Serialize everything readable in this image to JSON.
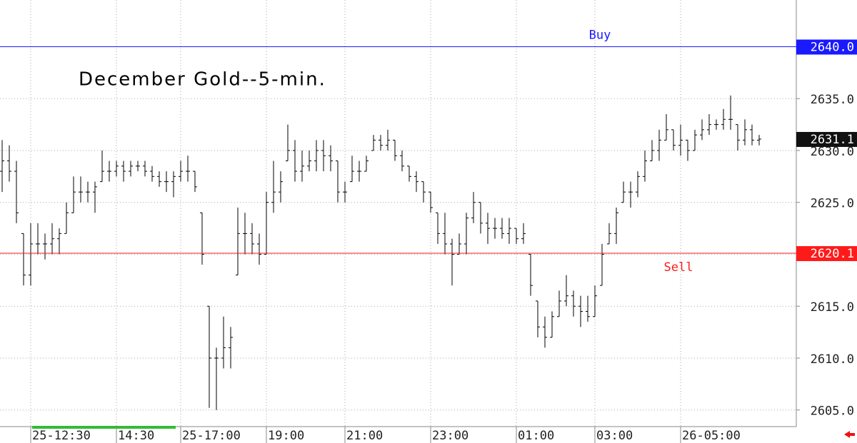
{
  "chart_data": {
    "type": "ohlc",
    "title": "December Gold--5-min.",
    "color": "#000000",
    "categories": [
      null,
      null,
      null,
      null,
      "25-12:30",
      null,
      null,
      null,
      null,
      null,
      null,
      null,
      null,
      null,
      null,
      null,
      "14:30",
      null,
      null,
      null,
      null,
      null,
      null,
      null,
      null,
      "25-17:00",
      null,
      null,
      null,
      null,
      null,
      null,
      null,
      null,
      null,
      null,
      null,
      "19:00",
      null,
      null,
      null,
      null,
      null,
      null,
      null,
      null,
      null,
      null,
      "21:00",
      null,
      null,
      null,
      null,
      null,
      null,
      null,
      null,
      null,
      null,
      null,
      "23:00",
      null,
      null,
      null,
      null,
      null,
      null,
      null,
      null,
      null,
      null,
      null,
      "01:00",
      null,
      null,
      null,
      null,
      null,
      null,
      null,
      null,
      null,
      null,
      "03:00",
      null,
      null,
      null,
      null,
      null,
      null,
      null,
      null,
      null,
      null,
      null,
      "26-05:00",
      null,
      null,
      null,
      null,
      null,
      null,
      null,
      null,
      null,
      null,
      null
    ],
    "open": [
      2628,
      2629,
      2628,
      2622,
      2618,
      2621,
      2621,
      2621,
      2621.5,
      2622,
      2624,
      2626,
      2626,
      2626,
      2627,
      2628,
      2628,
      2628.5,
      2628,
      2628.5,
      2628.5,
      2628,
      2627.5,
      2627,
      2627,
      2627.5,
      2628,
      2628,
      2624,
      2615,
      2610,
      2610,
      2611,
      2618,
      2622,
      2622,
      2621,
      2620,
      2625,
      2626,
      2629,
      2630,
      2628,
      2628.5,
      2629,
      2630,
      2629.5,
      2629,
      2626,
      2627,
      2628,
      2628,
      2630,
      2631,
      2630.5,
      2631,
      2629.5,
      2628.5,
      2627.5,
      2627,
      2626,
      2624,
      2622,
      2621,
      2620,
      2621,
      2623.5,
      2625,
      2623,
      2622.5,
      2622.5,
      2622,
      2622.5,
      2621.5,
      2620,
      2615.5,
      2613,
      2612,
      2614,
      2615.5,
      2616,
      2615,
      2614.5,
      2614,
      2617,
      2621,
      2622,
      2625,
      2626,
      2626,
      2627.5,
      2629,
      2630,
      2631,
      2632,
      2630.5,
      2631,
      2630,
      2631.5,
      2632,
      2632.5,
      2632.5,
      2633,
      2632.5,
      2631,
      2632,
      2631
    ],
    "high": [
      2631,
      2630.5,
      2629,
      2622,
      2623,
      2623,
      2622,
      2623,
      2622.5,
      2625,
      2627.5,
      2627.5,
      2627,
      2627,
      2630,
      2629,
      2629,
      2629,
      2629,
      2629,
      2629,
      2628.5,
      2628,
      2628,
      2628,
      2629,
      2629.5,
      2628,
      2624,
      2615,
      2611,
      2614,
      2613,
      2624.5,
      2624,
      2623,
      2622,
      2626,
      2629,
      2628,
      2632.5,
      2631,
      2630,
      2630,
      2631,
      2631,
      2630.5,
      2629,
      2627,
      2629.5,
      2629,
      2629.5,
      2631.5,
      2631.5,
      2632,
      2631,
      2630,
      2628.5,
      2628,
      2627,
      2626,
      2624,
      2624,
      2621.5,
      2622,
      2624,
      2626,
      2625,
      2624,
      2623.5,
      2623.5,
      2623.5,
      2622.5,
      2623,
      2620,
      2615.5,
      2614,
      2614.5,
      2616.5,
      2618,
      2616.5,
      2616,
      2616,
      2617,
      2621,
      2623,
      2624.5,
      2627,
      2627,
      2628,
      2630,
      2631,
      2632,
      2633.5,
      2632,
      2632.5,
      2631,
      2632,
      2633,
      2633.5,
      2633,
      2634,
      2635.3,
      2632.5,
      2633,
      2632.5,
      2631.5
    ],
    "low": [
      2626,
      2627,
      2623,
      2617,
      2617,
      2620,
      2619.5,
      2620,
      2620,
      2622,
      2624,
      2625,
      2625,
      2624,
      2627,
      2627,
      2627.5,
      2627,
      2627.5,
      2628,
      2627.5,
      2627,
      2626.5,
      2626,
      2625.5,
      2627,
      2627,
      2626,
      2619,
      2605.2,
      2605,
      2609,
      2609,
      2618,
      2620,
      2620,
      2619,
      2620,
      2624,
      2625,
      2629,
      2627,
      2627,
      2628,
      2628,
      2628,
      2628,
      2625,
      2625,
      2627,
      2627,
      2628,
      2630,
      2630,
      2630,
      2629,
      2628,
      2627,
      2626,
      2625,
      2624,
      2621,
      2620,
      2617,
      2620,
      2620,
      2623,
      2622,
      2621,
      2621.5,
      2621.5,
      2621,
      2621,
      2621,
      2616,
      2612,
      2611,
      2612,
      2614,
      2615,
      2614,
      2613,
      2613.5,
      2614,
      2617,
      2621,
      2621,
      2625,
      2624.5,
      2625.5,
      2627,
      2629,
      2629,
      2631,
      2630,
      2629.5,
      2629,
      2630,
      2631,
      2631.5,
      2632,
      2632,
      2632,
      2630,
      2630.5,
      2630.5,
      2630.5
    ],
    "close": [
      2629,
      2628,
      2624,
      2618,
      2621,
      2621,
      2621,
      2621.5,
      2622,
      2624,
      2626,
      2626,
      2626,
      2626.5,
      2628,
      2628,
      2628.5,
      2628,
      2628.5,
      2628.5,
      2628,
      2627.5,
      2627,
      2627,
      2627.5,
      2628,
      2628,
      2626.5,
      2620,
      2610,
      2610,
      2611,
      2612,
      2622,
      2622,
      2621,
      2620,
      2625,
      2626,
      2627,
      2630,
      2628,
      2628.5,
      2629,
      2630,
      2629.5,
      2629,
      2626,
      2626,
      2628,
      2628,
      2629,
      2631,
      2630.5,
      2631,
      2629.5,
      2628.5,
      2627.5,
      2627,
      2626,
      2624.5,
      2622,
      2621,
      2620,
      2621,
      2623.5,
      2625,
      2623,
      2622.5,
      2622.5,
      2622,
      2622.5,
      2621.5,
      2622,
      2617,
      2613,
      2612,
      2614,
      2615.5,
      2616,
      2615,
      2614.5,
      2614,
      2616,
      2620,
      2622,
      2624,
      2626,
      2626,
      2627.5,
      2629,
      2630,
      2631,
      2632,
      2630.5,
      2631,
      2630,
      2631.5,
      2632,
      2632.5,
      2632.5,
      2633,
      2633,
      2631,
      2632,
      2631,
      2631.1
    ],
    "ylim": [
      2603.4,
      2644.5
    ],
    "yticks": [
      {
        "value": 2605,
        "label": "2605.0"
      },
      {
        "value": 2610,
        "label": "2610.0"
      },
      {
        "value": 2615,
        "label": "2615.0"
      },
      {
        "value": 2620,
        "label": "2620.0"
      },
      {
        "value": 2625,
        "label": "2625.0"
      },
      {
        "value": 2630,
        "label": "2630.0"
      },
      {
        "value": 2635,
        "label": "2635.0"
      }
    ],
    "grid": true,
    "levels": [
      {
        "name": "Buy",
        "value": 2640,
        "label": "2640.0",
        "color": "#1a1aff"
      },
      {
        "name": "Sell",
        "value": 2620.1,
        "label": "2620.1",
        "color": "#ff1a1a"
      }
    ],
    "last_price": {
      "value": 2631.1,
      "label": "2631.1",
      "color": "#111111"
    }
  }
}
